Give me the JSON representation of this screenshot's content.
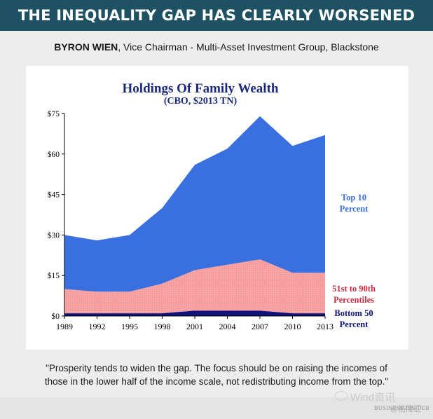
{
  "banner": {
    "title": "THE INEQUALITY GAP HAS CLEARLY WORSENED"
  },
  "byline": {
    "name": "BYRON WIEN",
    "role": ", Vice Chairman - Multi-Asset Investment Group, Blackstone"
  },
  "quote": {
    "line1": "\"Prosperity tends to widen the gap. The focus should be on raising the incomes of",
    "line2": "those in the lower half of the income scale, not redistributing income from the top.\""
  },
  "watermark": {
    "wind": "Wind资讯",
    "bi": "BUSINESS INSIDER",
    "ge": "@格隆汇"
  },
  "colors": {
    "banner": "#1e5263",
    "top10": "#3a6fe0",
    "mid": "#f7a2a2",
    "bottom": "#10137a",
    "title": "#1b2a7a",
    "midLabel": "#cc2a3c"
  },
  "chart_data": {
    "type": "area",
    "stacked": true,
    "title": "Holdings Of Family Wealth",
    "subtitle": "(CBO, $2013 TN)",
    "x": [
      "1989",
      "1992",
      "1995",
      "1998",
      "2001",
      "2004",
      "2007",
      "2010",
      "2013"
    ],
    "ylim": [
      0,
      75
    ],
    "yticks": [
      "$0",
      "$15",
      "$30",
      "$45",
      "$60",
      "$75"
    ],
    "ytick_values": [
      0,
      15,
      30,
      45,
      60,
      75
    ],
    "grid": false,
    "series": [
      {
        "name": "Bottom 50 Percent",
        "label_lines": [
          "Bottom 50",
          "Percent"
        ],
        "color": "#10137a",
        "values": [
          1,
          1,
          1,
          1,
          2,
          2,
          2,
          1,
          1
        ]
      },
      {
        "name": "51st to 90th Percentiles",
        "label_lines": [
          "51st to 90th",
          "Percentiles"
        ],
        "color": "#f7a2a2",
        "values": [
          9,
          8,
          8,
          11,
          15,
          17,
          19,
          15,
          15
        ]
      },
      {
        "name": "Top 10 Percent",
        "label_lines": [
          "Top 10",
          "Percent"
        ],
        "color": "#3a6fe0",
        "values": [
          20,
          19,
          21,
          28,
          39,
          43,
          53,
          47,
          51
        ]
      }
    ]
  }
}
